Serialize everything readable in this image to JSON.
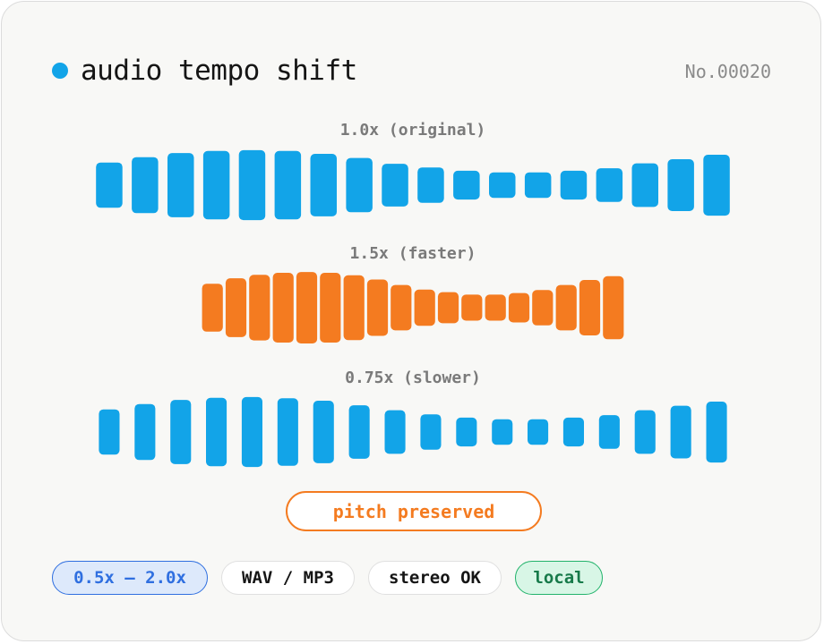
{
  "header": {
    "title": "audio tempo shift",
    "serial": "No.00020"
  },
  "waveforms": [
    {
      "label": "1.0x (original)",
      "color": "#12a4e8",
      "bar_heights": [
        0.55,
        0.68,
        0.78,
        0.83,
        0.85,
        0.83,
        0.76,
        0.66,
        0.52,
        0.43,
        0.35,
        0.31,
        0.31,
        0.35,
        0.41,
        0.53,
        0.63,
        0.74
      ]
    },
    {
      "label": "1.5x (faster)",
      "color": "#f47b20",
      "bar_heights": [
        0.57,
        0.7,
        0.78,
        0.83,
        0.85,
        0.83,
        0.77,
        0.67,
        0.54,
        0.43,
        0.37,
        0.31,
        0.31,
        0.35,
        0.42,
        0.54,
        0.66,
        0.75
      ]
    },
    {
      "label": "0.75x (slower)",
      "color": "#12a4e8",
      "bar_heights": [
        0.55,
        0.68,
        0.78,
        0.83,
        0.85,
        0.82,
        0.76,
        0.65,
        0.53,
        0.43,
        0.35,
        0.31,
        0.31,
        0.35,
        0.41,
        0.53,
        0.64,
        0.74
      ]
    }
  ],
  "badge": {
    "label": "pitch preserved",
    "color": "#f47b20"
  },
  "chips": [
    {
      "label": "0.5x – 2.0x"
    },
    {
      "label": "WAV / MP3"
    },
    {
      "label": "stereo OK"
    },
    {
      "label": "local"
    }
  ]
}
